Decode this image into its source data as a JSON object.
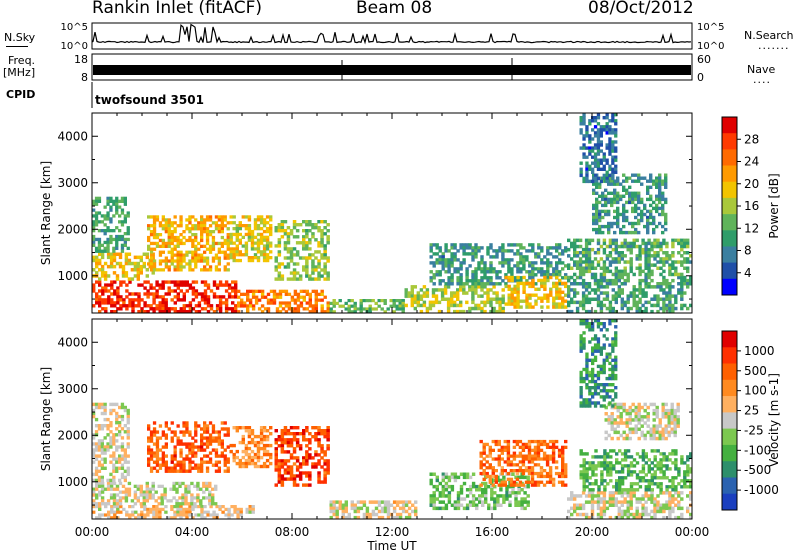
{
  "header": {
    "site": "Rankin Inlet (fitACF)",
    "beam": "Beam 08",
    "date": "08/Oct/2012"
  },
  "side_labels": {
    "nsky": "N.Sky",
    "nsearch": "N.Search",
    "freq": "Freq.",
    "freq_unit": "[MHz]",
    "nave": "Nave",
    "cpid": "CPID",
    "cpid_value": "twofsound 3501"
  },
  "strip_ticks": {
    "nsky_left": [
      "10^5",
      "10^0"
    ],
    "nsky_right": [
      "10^5",
      "10^0"
    ],
    "freq_left": [
      "18",
      "8"
    ],
    "nave_right": [
      "60",
      "0"
    ]
  },
  "colors": {
    "power_scale": [
      "#0000ff",
      "#1f4fa8",
      "#3a7fa0",
      "#2f9d6a",
      "#5fb35a",
      "#a9c83a",
      "#f2c400",
      "#ff9a00",
      "#ff6a00",
      "#ff3a00",
      "#e00000"
    ],
    "velocity_scale": [
      "#1a3fbf",
      "#2a62b0",
      "#2d8f6b",
      "#44b040",
      "#7cc850",
      "#c8c8c8",
      "#ffb060",
      "#ff8a20",
      "#ff6000",
      "#ff3000",
      "#e00000"
    ]
  },
  "chart_data": [
    {
      "type": "heatmap",
      "name": "Power",
      "ylabel": "Slant Range [km]",
      "xlabel": "Time UT",
      "x_ticks": [
        "00:00",
        "04:00",
        "08:00",
        "12:00",
        "16:00",
        "20:00",
        "00:00"
      ],
      "y_ticks": [
        1000,
        2000,
        3000,
        4000
      ],
      "ylim": [
        200,
        4500
      ],
      "xlim_hours": [
        0,
        24
      ],
      "colorbar": {
        "label": "Power [dB]",
        "ticks": [
          "28",
          "24",
          "20",
          "16",
          "12",
          "8",
          "4"
        ],
        "range": [
          0,
          30
        ]
      },
      "regions": [
        {
          "t": [
            0.0,
            5.8
          ],
          "r": [
            200,
            900
          ],
          "v": 27
        },
        {
          "t": [
            5.8,
            9.5
          ],
          "r": [
            200,
            700
          ],
          "v": 22
        },
        {
          "t": [
            0.0,
            2.5
          ],
          "r": [
            900,
            1500
          ],
          "v": 18
        },
        {
          "t": [
            0.0,
            1.5
          ],
          "r": [
            1500,
            2700
          ],
          "v": 10
        },
        {
          "t": [
            2.2,
            5.5
          ],
          "r": [
            1100,
            2300
          ],
          "v": 19
        },
        {
          "t": [
            5.5,
            7.2
          ],
          "r": [
            1300,
            2300
          ],
          "v": 17
        },
        {
          "t": [
            7.3,
            9.5
          ],
          "r": [
            900,
            2200
          ],
          "v": 14
        },
        {
          "t": [
            9.5,
            12.5
          ],
          "r": [
            200,
            500
          ],
          "v": 12
        },
        {
          "t": [
            12.5,
            16.5
          ],
          "r": [
            200,
            800
          ],
          "v": 15
        },
        {
          "t": [
            13.5,
            19.0
          ],
          "r": [
            800,
            1700
          ],
          "v": 9
        },
        {
          "t": [
            16.5,
            19.0
          ],
          "r": [
            300,
            1000
          ],
          "v": 18
        },
        {
          "t": [
            19.0,
            24.0
          ],
          "r": [
            200,
            1000
          ],
          "v": 10
        },
        {
          "t": [
            19.0,
            24.0
          ],
          "r": [
            1000,
            1800
          ],
          "v": 11
        },
        {
          "t": [
            20.0,
            23.0
          ],
          "r": [
            1900,
            3200
          ],
          "v": 9
        },
        {
          "t": [
            19.5,
            21.0
          ],
          "r": [
            3000,
            4500
          ],
          "v": 6
        }
      ]
    },
    {
      "type": "heatmap",
      "name": "Velocity",
      "ylabel": "Slant Range [km]",
      "xlabel": "Time UT",
      "x_ticks": [
        "00:00",
        "04:00",
        "08:00",
        "12:00",
        "16:00",
        "20:00",
        "00:00"
      ],
      "y_ticks": [
        1000,
        2000,
        3000,
        4000
      ],
      "ylim": [
        200,
        4500
      ],
      "xlim_hours": [
        0,
        24
      ],
      "colorbar": {
        "label": "Velocity [m s-1]",
        "ticks": [
          "1000",
          "500",
          "100",
          "25",
          "-25",
          "-100",
          "-500",
          "-1000"
        ],
        "range": [
          -1200,
          1200
        ]
      },
      "regions": [
        {
          "t": [
            0.0,
            6.5
          ],
          "r": [
            200,
            500
          ],
          "v": 120
        },
        {
          "t": [
            0.0,
            5.0
          ],
          "r": [
            500,
            1000
          ],
          "v": 0
        },
        {
          "t": [
            0.0,
            1.5
          ],
          "r": [
            1000,
            2700
          ],
          "v": 30
        },
        {
          "t": [
            2.2,
            5.5
          ],
          "r": [
            1200,
            2300
          ],
          "v": 700
        },
        {
          "t": [
            5.5,
            7.2
          ],
          "r": [
            1300,
            2200
          ],
          "v": 400
        },
        {
          "t": [
            7.3,
            9.5
          ],
          "r": [
            900,
            2200
          ],
          "v": 800
        },
        {
          "t": [
            9.5,
            13.0
          ],
          "r": [
            200,
            600
          ],
          "v": 50
        },
        {
          "t": [
            13.5,
            17.5
          ],
          "r": [
            400,
            1200
          ],
          "v": -300
        },
        {
          "t": [
            15.5,
            19.0
          ],
          "r": [
            900,
            1900
          ],
          "v": 600
        },
        {
          "t": [
            19.0,
            24.0
          ],
          "r": [
            200,
            800
          ],
          "v": -20
        },
        {
          "t": [
            19.5,
            24.0
          ],
          "r": [
            800,
            1700
          ],
          "v": -400
        },
        {
          "t": [
            20.5,
            23.5
          ],
          "r": [
            1900,
            2700
          ],
          "v": 10
        },
        {
          "t": [
            19.5,
            21.0
          ],
          "r": [
            2600,
            4500
          ],
          "v": -600
        }
      ]
    }
  ]
}
